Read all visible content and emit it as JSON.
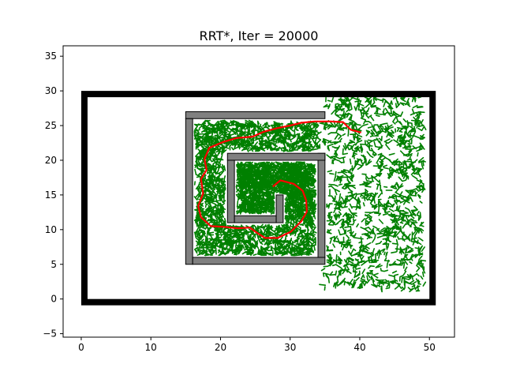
{
  "chart_data": {
    "type": "line",
    "title": "RRT*, Iter = 20000",
    "xlabel": "",
    "ylabel": "",
    "xlim": [
      -2.6,
      53.6
    ],
    "ylim": [
      -5.5,
      36.5
    ],
    "xticks": [
      0,
      10,
      20,
      30,
      40,
      50
    ],
    "yticks": [
      -5,
      0,
      5,
      10,
      15,
      20,
      25,
      30,
      35
    ],
    "grid": false,
    "legend": null,
    "colors": {
      "boundary": "#000000",
      "obstacle_fill": "#808080",
      "obstacle_edge": "#000000",
      "tree": "#008000",
      "path": "#ff0000"
    },
    "boundary": [
      [
        0,
        0
      ],
      [
        50,
        0
      ],
      [
        50,
        30
      ],
      [
        0,
        30
      ]
    ],
    "obstacles": [
      [
        15,
        26,
        20,
        1
      ],
      [
        15,
        5,
        1,
        21
      ],
      [
        16,
        5,
        19,
        1
      ],
      [
        34,
        6,
        1,
        15
      ],
      [
        21,
        20,
        14,
        1
      ],
      [
        21,
        11,
        1,
        9
      ],
      [
        22,
        11,
        6,
        1
      ],
      [
        28,
        11,
        1,
        4
      ]
    ],
    "path": [
      [
        27.5,
        16.2
      ],
      [
        28.6,
        17.1
      ],
      [
        30.5,
        16.6
      ],
      [
        31.8,
        15.6
      ],
      [
        32.3,
        14.2
      ],
      [
        32.4,
        12.6
      ],
      [
        31.6,
        11.2
      ],
      [
        30.1,
        9.7
      ],
      [
        28.2,
        8.8
      ],
      [
        26.4,
        8.8
      ],
      [
        25.3,
        9.5
      ],
      [
        24.2,
        10.3
      ],
      [
        22.5,
        10.2
      ],
      [
        20.5,
        10.4
      ],
      [
        18.6,
        10.5
      ],
      [
        17.2,
        11.8
      ],
      [
        16.8,
        13.4
      ],
      [
        17.5,
        15.2
      ],
      [
        17.2,
        17.3
      ],
      [
        18.0,
        18.6
      ],
      [
        17.7,
        20.2
      ],
      [
        18.4,
        21.8
      ],
      [
        20.3,
        22.6
      ],
      [
        22.3,
        23.2
      ],
      [
        24.6,
        23.4
      ],
      [
        26.2,
        24.1
      ],
      [
        28.0,
        24.6
      ],
      [
        30.0,
        25.0
      ],
      [
        31.6,
        25.4
      ],
      [
        33.5,
        25.6
      ],
      [
        35.8,
        25.6
      ],
      [
        37.6,
        25.5
      ],
      [
        38.7,
        24.4
      ],
      [
        40.2,
        24.0
      ]
    ],
    "tree_seed": 20000
  }
}
